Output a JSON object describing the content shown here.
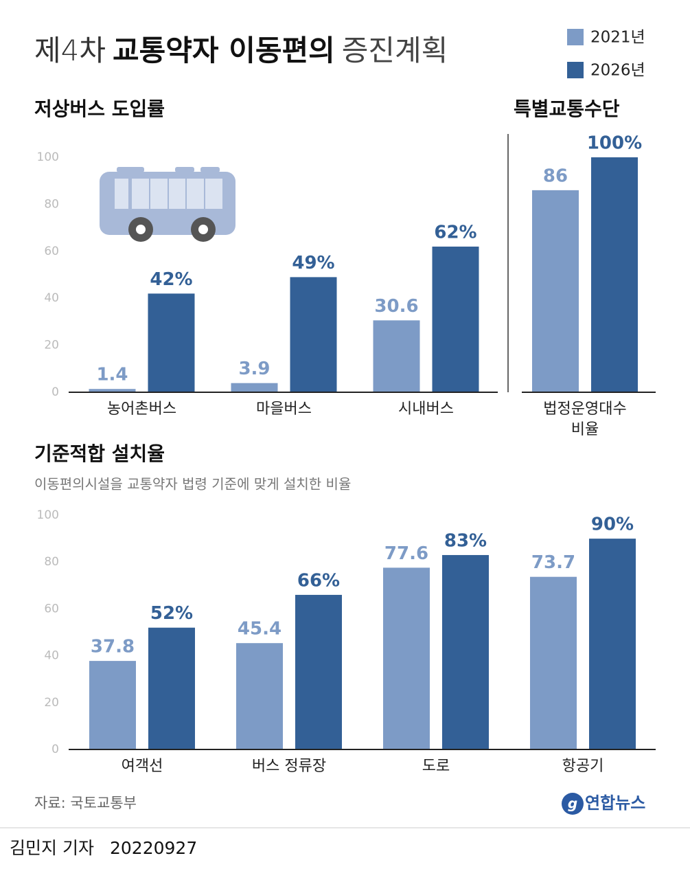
{
  "header": {
    "title": [
      "제4차",
      "교통약자 이동편의",
      "증진계획"
    ]
  },
  "chart_data": [
    {
      "type": "bar",
      "title": "저상버스 도입률",
      "categories": [
        "농어촌버스",
        "마을버스",
        "시내버스"
      ],
      "series": [
        {
          "name": "2021년",
          "color": "#7d9bc6",
          "values": [
            1.4,
            3.9,
            30.6
          ]
        },
        {
          "name": "2026년",
          "color": "#336096",
          "values": [
            42,
            49,
            62
          ],
          "value_labels": [
            "42%",
            "49%",
            "62%"
          ]
        }
      ],
      "ylim": [
        0,
        100
      ],
      "yticks": [
        0,
        20,
        40,
        60,
        80,
        100
      ],
      "grid": false
    },
    {
      "type": "bar",
      "title": "특별교통수단",
      "categories": [
        "법정운영대수\n비율"
      ],
      "series": [
        {
          "color": "#7d9bc6",
          "values": [
            86
          ]
        },
        {
          "color": "#336096",
          "values": [
            100
          ],
          "value_labels": [
            "100%"
          ]
        }
      ],
      "ylim": [
        0,
        100
      ],
      "grid": false
    },
    {
      "type": "bar",
      "title": "기준적합 설치율",
      "subtitle": "이동편의시설을 교통약자 법령 기준에 맞게 설치한 비율",
      "categories": [
        "여객선",
        "버스 정류장",
        "도로",
        "항공기"
      ],
      "series": [
        {
          "color": "#7d9bc6",
          "values": [
            37.8,
            45.4,
            77.6,
            73.7
          ]
        },
        {
          "color": "#336096",
          "values": [
            52,
            66,
            83,
            90
          ],
          "value_labels": [
            "52%",
            "66%",
            "83%",
            "90%"
          ]
        }
      ],
      "ylim": [
        0,
        100
      ],
      "yticks": [
        0,
        20,
        40,
        60,
        80,
        100
      ],
      "grid": false
    }
  ],
  "footer": {
    "source": "자료: 국토교통부",
    "logo": "연합뉴스",
    "byline": "김민지 기자",
    "date": "20220927"
  }
}
